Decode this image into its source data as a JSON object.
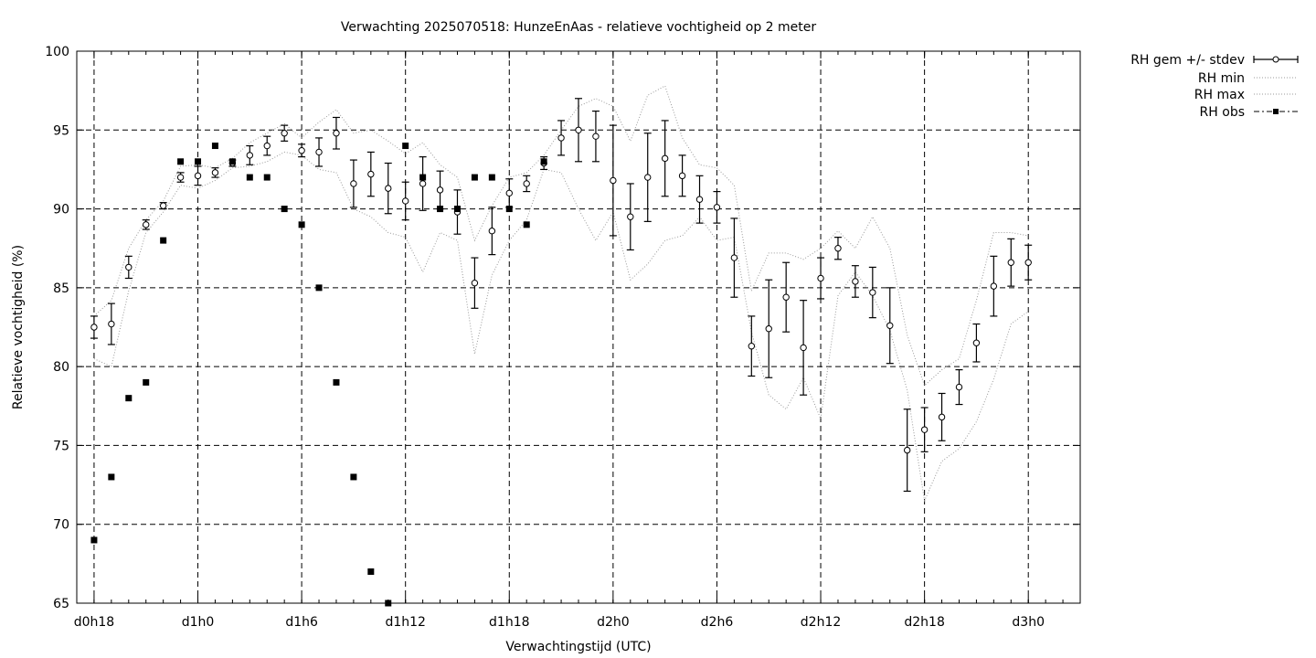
{
  "chart_data": {
    "type": "line",
    "title": "Verwachting 2025070518: HunzeEnAas - relatieve vochtigheid op 2 meter",
    "xlabel": "Verwachtingstijd (UTC)",
    "ylabel": "Relatieve vochtigheid (%)",
    "xlim": [
      17,
      75
    ],
    "ylim": [
      65,
      100
    ],
    "x_ticks": [
      {
        "x": 18,
        "label": "d0h18"
      },
      {
        "x": 24,
        "label": "d1h0"
      },
      {
        "x": 30,
        "label": "d1h6"
      },
      {
        "x": 36,
        "label": "d1h12"
      },
      {
        "x": 42,
        "label": "d1h18"
      },
      {
        "x": 48,
        "label": "d2h0"
      },
      {
        "x": 54,
        "label": "d2h6"
      },
      {
        "x": 60,
        "label": "d2h12"
      },
      {
        "x": 66,
        "label": "d2h18"
      },
      {
        "x": 72,
        "label": "d3h0"
      }
    ],
    "y_ticks": [
      65,
      70,
      75,
      80,
      85,
      90,
      95,
      100
    ],
    "grid": true,
    "legend_position": "outside-top-right",
    "series": [
      {
        "name": "RH gem +/- stdev",
        "style": "errorbars",
        "x": [
          18,
          19,
          20,
          21,
          22,
          23,
          24,
          25,
          26,
          27,
          28,
          29,
          30,
          31,
          32,
          33,
          34,
          35,
          36,
          37,
          38,
          39,
          40,
          41,
          42,
          43,
          44,
          45,
          46,
          47,
          48,
          49,
          50,
          51,
          52,
          53,
          54,
          55,
          56,
          57,
          58,
          59,
          60,
          61,
          62,
          63,
          64,
          65,
          66,
          67,
          68,
          69,
          70,
          71,
          72
        ],
        "mean": [
          82.5,
          82.7,
          86.3,
          89.0,
          90.2,
          92.0,
          92.1,
          92.3,
          92.9,
          93.4,
          94.0,
          94.8,
          93.7,
          93.6,
          94.8,
          91.6,
          92.2,
          91.3,
          90.5,
          91.6,
          91.2,
          89.8,
          85.3,
          88.6,
          91.0,
          91.6,
          92.9,
          94.5,
          95.0,
          94.6,
          91.8,
          89.5,
          92.0,
          93.2,
          92.1,
          90.6,
          90.1,
          86.9,
          81.3,
          82.4,
          84.4,
          81.2,
          85.6,
          87.5,
          85.4,
          84.7,
          82.6,
          74.7,
          76.0,
          76.8,
          78.7,
          81.5,
          85.1,
          86.6,
          86.6
        ],
        "stdev": [
          0.7,
          1.3,
          0.7,
          0.3,
          0.2,
          0.3,
          0.6,
          0.3,
          0.2,
          0.6,
          0.6,
          0.5,
          0.4,
          0.9,
          1.0,
          1.5,
          1.4,
          1.6,
          1.2,
          1.7,
          1.2,
          1.4,
          1.6,
          1.5,
          0.9,
          0.5,
          0.4,
          1.1,
          2.0,
          1.6,
          3.5,
          2.1,
          2.8,
          2.4,
          1.3,
          1.5,
          1.0,
          2.5,
          1.9,
          3.1,
          2.2,
          3.0,
          1.3,
          0.7,
          1.0,
          1.6,
          2.4,
          2.6,
          1.4,
          1.5,
          1.1,
          1.2,
          1.9,
          1.5,
          1.1
        ]
      },
      {
        "name": "RH min",
        "style": "dotted",
        "x": [
          18,
          19,
          20,
          21,
          22,
          23,
          24,
          25,
          26,
          27,
          28,
          29,
          30,
          31,
          32,
          33,
          34,
          35,
          36,
          37,
          38,
          39,
          40,
          41,
          42,
          43,
          44,
          45,
          46,
          47,
          48,
          49,
          50,
          51,
          52,
          53,
          54,
          55,
          56,
          57,
          58,
          59,
          60,
          61,
          62,
          63,
          64,
          65,
          66,
          67,
          68,
          69,
          70,
          71,
          72
        ],
        "values": [
          80.5,
          80.0,
          84.8,
          88.5,
          89.8,
          91.5,
          91.3,
          91.8,
          92.6,
          92.7,
          93.0,
          93.6,
          93.4,
          92.5,
          92.3,
          90.0,
          89.5,
          88.5,
          88.2,
          86.0,
          88.5,
          88.0,
          80.8,
          85.8,
          88.0,
          89.3,
          92.5,
          92.3,
          90.0,
          88.0,
          89.8,
          85.5,
          86.5,
          88.0,
          88.3,
          89.5,
          88.0,
          88.2,
          82.2,
          78.2,
          77.3,
          79.3,
          76.7,
          84.5,
          86.0,
          84.5,
          82.3,
          78.5,
          71.5,
          74.0,
          74.8,
          76.5,
          79.2,
          82.7,
          83.5
        ]
      },
      {
        "name": "RH max",
        "style": "dotted",
        "x": [
          18,
          19,
          20,
          21,
          22,
          23,
          24,
          25,
          26,
          27,
          28,
          29,
          30,
          31,
          32,
          33,
          34,
          35,
          36,
          37,
          38,
          39,
          40,
          41,
          42,
          43,
          44,
          45,
          46,
          47,
          48,
          49,
          50,
          51,
          52,
          53,
          54,
          55,
          56,
          57,
          58,
          59,
          60,
          61,
          62,
          63,
          64,
          65,
          66,
          67,
          68,
          69,
          70,
          71,
          72
        ],
        "values": [
          83.2,
          84.2,
          87.5,
          89.3,
          90.5,
          92.7,
          92.8,
          92.6,
          93.2,
          94.2,
          94.8,
          95.4,
          94.5,
          95.5,
          96.3,
          94.8,
          95.0,
          94.3,
          93.5,
          94.2,
          92.8,
          92.0,
          88.0,
          90.2,
          92.0,
          92.3,
          93.4,
          95.0,
          96.5,
          97.0,
          96.5,
          94.3,
          97.2,
          97.8,
          94.5,
          92.8,
          92.6,
          91.5,
          84.8,
          87.2,
          87.2,
          86.8,
          87.5,
          88.6,
          87.5,
          89.5,
          87.5,
          82.0,
          78.8,
          79.8,
          80.5,
          84.2,
          88.5,
          88.5,
          88.3
        ]
      },
      {
        "name": "RH obs",
        "style": "points",
        "x": [
          18,
          19,
          20,
          21,
          22,
          23,
          24,
          25,
          26,
          27,
          28,
          29,
          30,
          31,
          32,
          33,
          34,
          35,
          36,
          37,
          38,
          39,
          40,
          41,
          42,
          43,
          44
        ],
        "values": [
          69,
          73,
          78,
          79,
          88,
          93,
          93,
          94,
          93,
          92,
          92,
          90,
          89,
          85,
          79,
          73,
          67,
          65,
          94,
          92,
          90,
          90,
          92,
          92,
          90,
          89,
          93
        ]
      }
    ]
  }
}
